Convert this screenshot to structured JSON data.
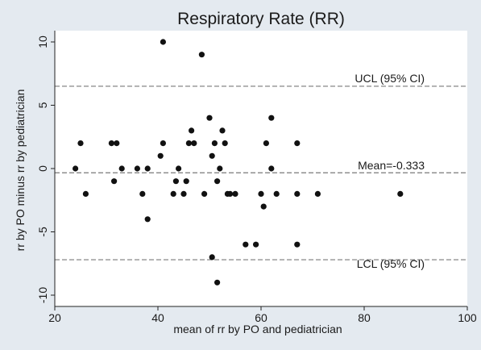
{
  "chart_data": {
    "type": "scatter",
    "title": "Respiratory Rate (RR)",
    "xlabel": "mean of rr by PO and pediatrician",
    "ylabel": "rr by PO minus rr by pediatrician",
    "xlim": [
      20,
      100
    ],
    "ylim": [
      -10,
      10
    ],
    "x_ticks": [
      20,
      40,
      60,
      80,
      100
    ],
    "y_ticks": [
      -10,
      -5,
      0,
      5,
      10
    ],
    "grid": false,
    "reference_lines": [
      {
        "label": "UCL (95% CI)",
        "y": 6.5
      },
      {
        "label": "Mean=-0.333",
        "y": -0.333
      },
      {
        "label": "LCL (95% CI)",
        "y": -7.2
      }
    ],
    "points": [
      {
        "x": 24,
        "y": 0
      },
      {
        "x": 25,
        "y": 2
      },
      {
        "x": 26,
        "y": -2
      },
      {
        "x": 31,
        "y": 2
      },
      {
        "x": 31.5,
        "y": -1
      },
      {
        "x": 32,
        "y": 2
      },
      {
        "x": 33,
        "y": 0
      },
      {
        "x": 36,
        "y": 0
      },
      {
        "x": 37,
        "y": -2
      },
      {
        "x": 38,
        "y": 0
      },
      {
        "x": 38,
        "y": -4
      },
      {
        "x": 40.5,
        "y": 1
      },
      {
        "x": 41,
        "y": 2
      },
      {
        "x": 41,
        "y": 10
      },
      {
        "x": 43,
        "y": -2
      },
      {
        "x": 43.5,
        "y": -1
      },
      {
        "x": 44,
        "y": 0
      },
      {
        "x": 45,
        "y": -2
      },
      {
        "x": 45.5,
        "y": -1
      },
      {
        "x": 46,
        "y": 2
      },
      {
        "x": 46.5,
        "y": 3
      },
      {
        "x": 47,
        "y": 2
      },
      {
        "x": 48.5,
        "y": 9
      },
      {
        "x": 49,
        "y": -2
      },
      {
        "x": 50,
        "y": 4
      },
      {
        "x": 50.5,
        "y": 1
      },
      {
        "x": 50.5,
        "y": -7
      },
      {
        "x": 51,
        "y": 2
      },
      {
        "x": 51.5,
        "y": -1
      },
      {
        "x": 51.5,
        "y": -9
      },
      {
        "x": 52,
        "y": 0
      },
      {
        "x": 52.5,
        "y": 3
      },
      {
        "x": 53,
        "y": 2
      },
      {
        "x": 53.5,
        "y": -2
      },
      {
        "x": 54,
        "y": -2
      },
      {
        "x": 55,
        "y": -2
      },
      {
        "x": 57,
        "y": -6
      },
      {
        "x": 59,
        "y": -6
      },
      {
        "x": 60,
        "y": -2
      },
      {
        "x": 60.5,
        "y": -3
      },
      {
        "x": 61,
        "y": 2
      },
      {
        "x": 62,
        "y": 4
      },
      {
        "x": 62,
        "y": 0
      },
      {
        "x": 63,
        "y": -2
      },
      {
        "x": 67,
        "y": 2
      },
      {
        "x": 67,
        "y": -2
      },
      {
        "x": 67,
        "y": -6
      },
      {
        "x": 71,
        "y": -2
      },
      {
        "x": 87,
        "y": -2
      }
    ]
  }
}
